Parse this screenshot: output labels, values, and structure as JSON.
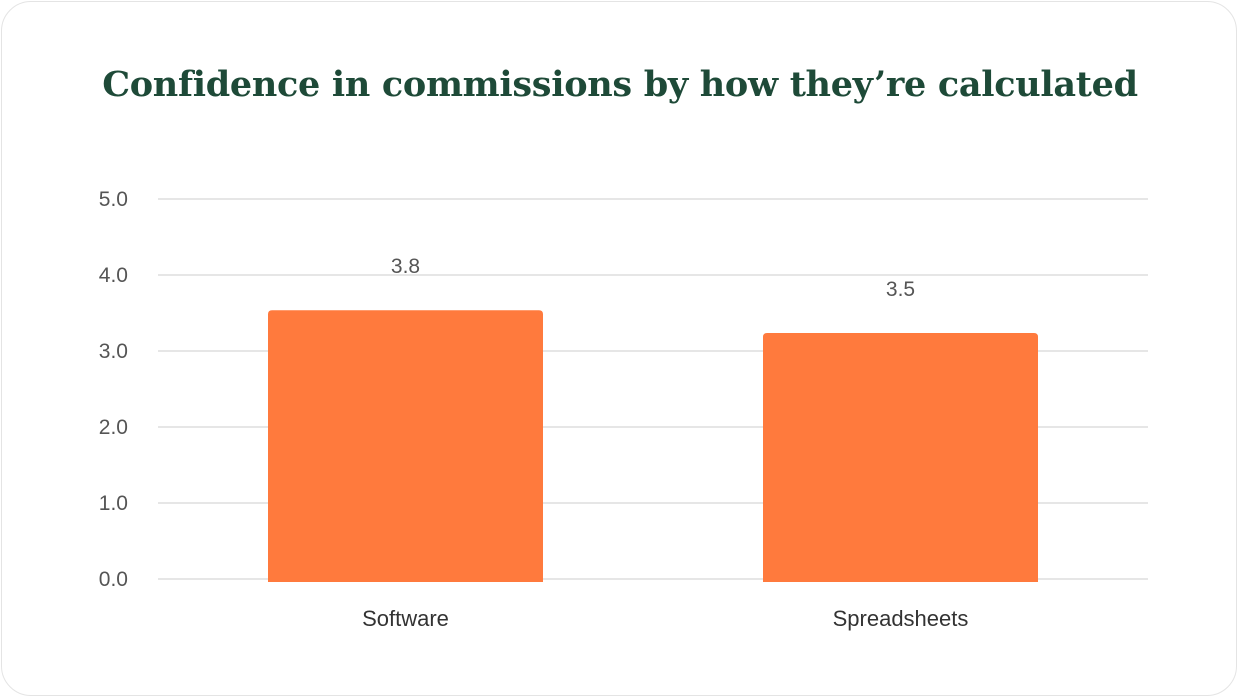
{
  "chart_data": {
    "type": "bar",
    "title": "Confidence in commissions by how they’re calculated",
    "xlabel": "",
    "ylabel": "",
    "categories": [
      "Software",
      "Spreadsheets"
    ],
    "values": [
      3.8,
      3.5
    ],
    "data_labels": [
      "3.8",
      "3.5"
    ],
    "ylim": [
      0,
      5
    ],
    "yticks": [
      0,
      1,
      2,
      3,
      4,
      5
    ],
    "ytick_labels": [
      "0.0",
      "1.0",
      "2.0",
      "3.0",
      "4.0",
      "5.0"
    ],
    "grid": true,
    "legend": "none",
    "bar_color": "#ff7a3d",
    "title_color": "#1e4a38"
  }
}
